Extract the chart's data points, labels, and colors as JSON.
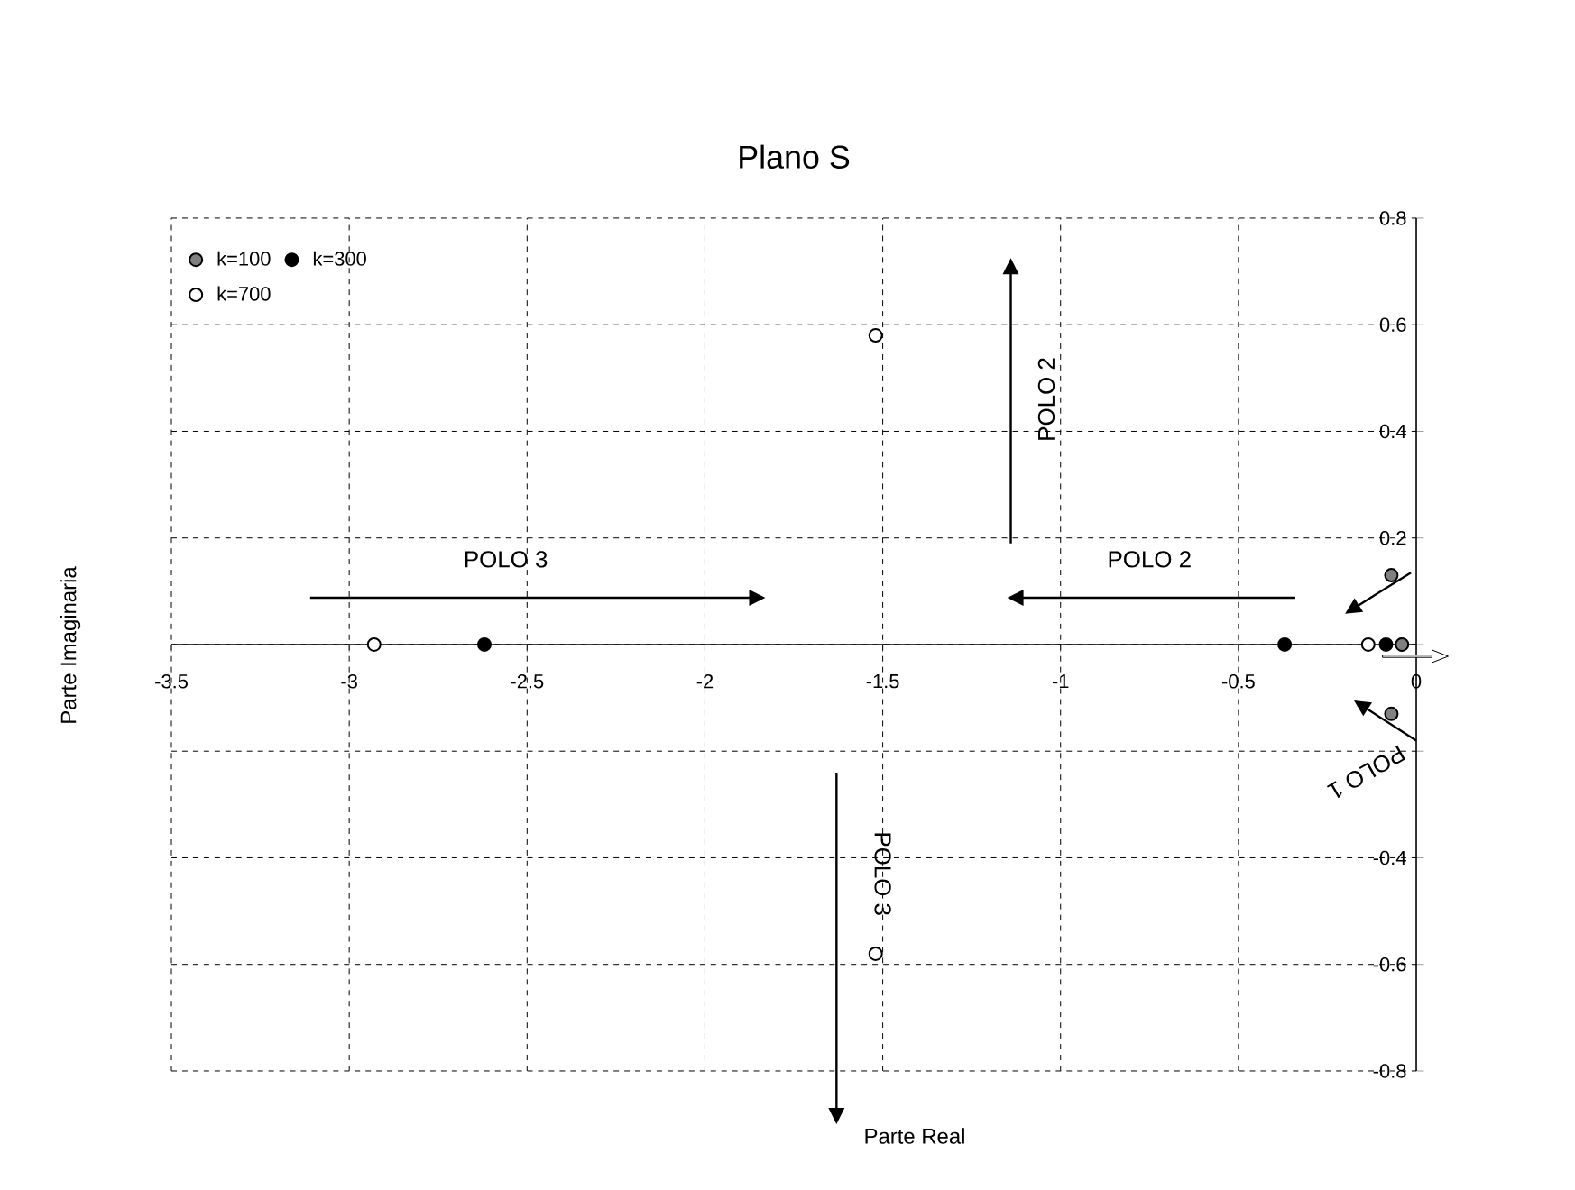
{
  "chart_data": {
    "type": "scatter",
    "title": "Plano S",
    "xlabel": "Parte Real",
    "ylabel": "Parte Imaginaria",
    "xlim": [
      -3.5,
      0
    ],
    "ylim": [
      -0.8,
      0.8
    ],
    "xticks": [
      -3.5,
      -3,
      -2.5,
      -2,
      -1.5,
      -1,
      -0.5,
      0
    ],
    "yticks": [
      -0.8,
      -0.6,
      -0.4,
      {
        "value": -0.2,
        "label": null
      },
      0,
      0.2,
      0.4,
      0.6,
      0.8
    ],
    "grid": true,
    "legend": "top left",
    "marker": "circle",
    "series": [
      {
        "name": "k=100",
        "color": "#808080",
        "x": [
          -0.07,
          -0.07,
          -0.04
        ],
        "values": [
          0.13,
          -0.13,
          0
        ]
      },
      {
        "name": "k=300",
        "color": "#000000",
        "x": [
          -2.62,
          -0.37,
          -0.085
        ],
        "values": [
          0,
          0,
          0
        ]
      },
      {
        "name": "k=700",
        "color": "#ffffff",
        "x": [
          -2.93,
          -1.52,
          -1.52,
          -0.135
        ],
        "values": [
          0,
          0.58,
          -0.58,
          0
        ]
      }
    ],
    "annotations": [
      "POLO 3",
      "POLO 2",
      "POLO 2",
      "POLO 3",
      "POLO 1"
    ]
  }
}
